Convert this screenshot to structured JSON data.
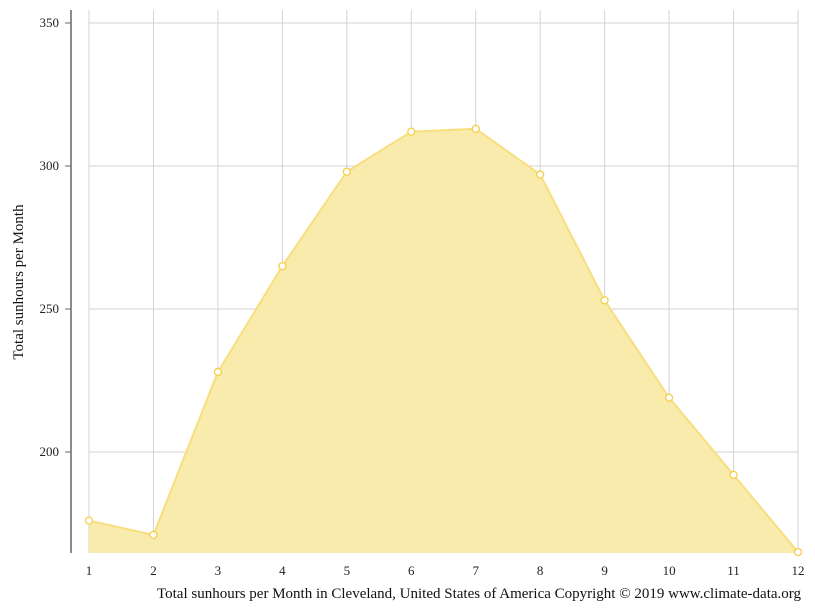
{
  "chart_data": {
    "type": "area",
    "title": "Total sunhours per Month in Cleveland, United States of America Copyright © 2019 www.climate-data.org",
    "xlabel": "",
    "ylabel": "Total sunhours per Month",
    "categories": [
      "1",
      "2",
      "3",
      "4",
      "5",
      "6",
      "7",
      "8",
      "9",
      "10",
      "11",
      "12"
    ],
    "series": [
      {
        "name": "Total sunhours per Month",
        "values": [
          176,
          171,
          228,
          265,
          298,
          312,
          313,
          297,
          253,
          219,
          192,
          165
        ]
      }
    ],
    "ylim": [
      164,
      353
    ],
    "yticks": [
      200,
      250,
      300,
      350
    ],
    "grid": true,
    "legend": "none",
    "colors": {
      "fill": "#f9eaa6",
      "line": "#f8de7e",
      "marker_stroke": "#f5cf4a",
      "marker_fill": "#ffffff",
      "grid": "#d3d3d3",
      "axis": "#666666"
    }
  },
  "labels": {
    "ylabel": "Total sunhours per Month",
    "caption": "Total sunhours per Month in Cleveland, United States of America Copyright © 2019 www.climate-data.org"
  }
}
